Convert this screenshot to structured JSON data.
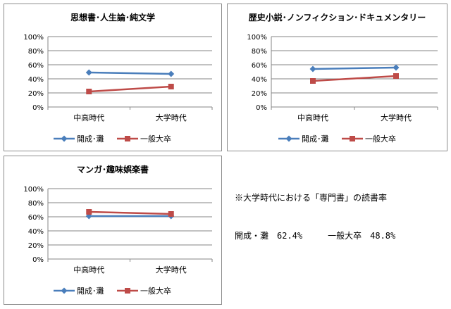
{
  "colors": {
    "series1": "#4a7ebb",
    "series2": "#be4b48",
    "grid": "#868686",
    "axis": "#868686"
  },
  "chart_data": [
    {
      "type": "line",
      "title": "思想書･人生論･純文学",
      "categories": [
        "中高時代",
        "大学時代"
      ],
      "ylim": [
        0,
        100
      ],
      "yticks": [
        "0%",
        "20%",
        "40%",
        "60%",
        "80%",
        "100%"
      ],
      "grid": true,
      "legend": "bottom",
      "series": [
        {
          "name": "開成･灘",
          "values": [
            49,
            47
          ]
        },
        {
          "name": "一般大卒",
          "values": [
            22,
            29
          ]
        }
      ]
    },
    {
      "type": "line",
      "title": "歴史小説･ノンフィクション･ドキュメンタリー",
      "categories": [
        "中高時代",
        "大学時代"
      ],
      "ylim": [
        0,
        100
      ],
      "yticks": [
        "0%",
        "20%",
        "40%",
        "60%",
        "80%",
        "100%"
      ],
      "grid": true,
      "legend": "bottom",
      "series": [
        {
          "name": "開成･灘",
          "values": [
            54,
            56
          ]
        },
        {
          "name": "一般大卒",
          "values": [
            37,
            44
          ]
        }
      ]
    },
    {
      "type": "line",
      "title": "マンガ･趣味娯楽書",
      "categories": [
        "中高時代",
        "大学時代"
      ],
      "ylim": [
        0,
        100
      ],
      "yticks": [
        "0%",
        "20%",
        "40%",
        "60%",
        "80%",
        "100%"
      ],
      "grid": true,
      "legend": "bottom",
      "series": [
        {
          "name": "開成･灘",
          "values": [
            61,
            61
          ]
        },
        {
          "name": "一般大卒",
          "values": [
            67,
            64
          ]
        }
      ]
    }
  ],
  "note": {
    "line1": "※大学時代における「専門書」の読書率",
    "line2": "開成・灘　62.4%　　　一般大卒　48.8%"
  }
}
